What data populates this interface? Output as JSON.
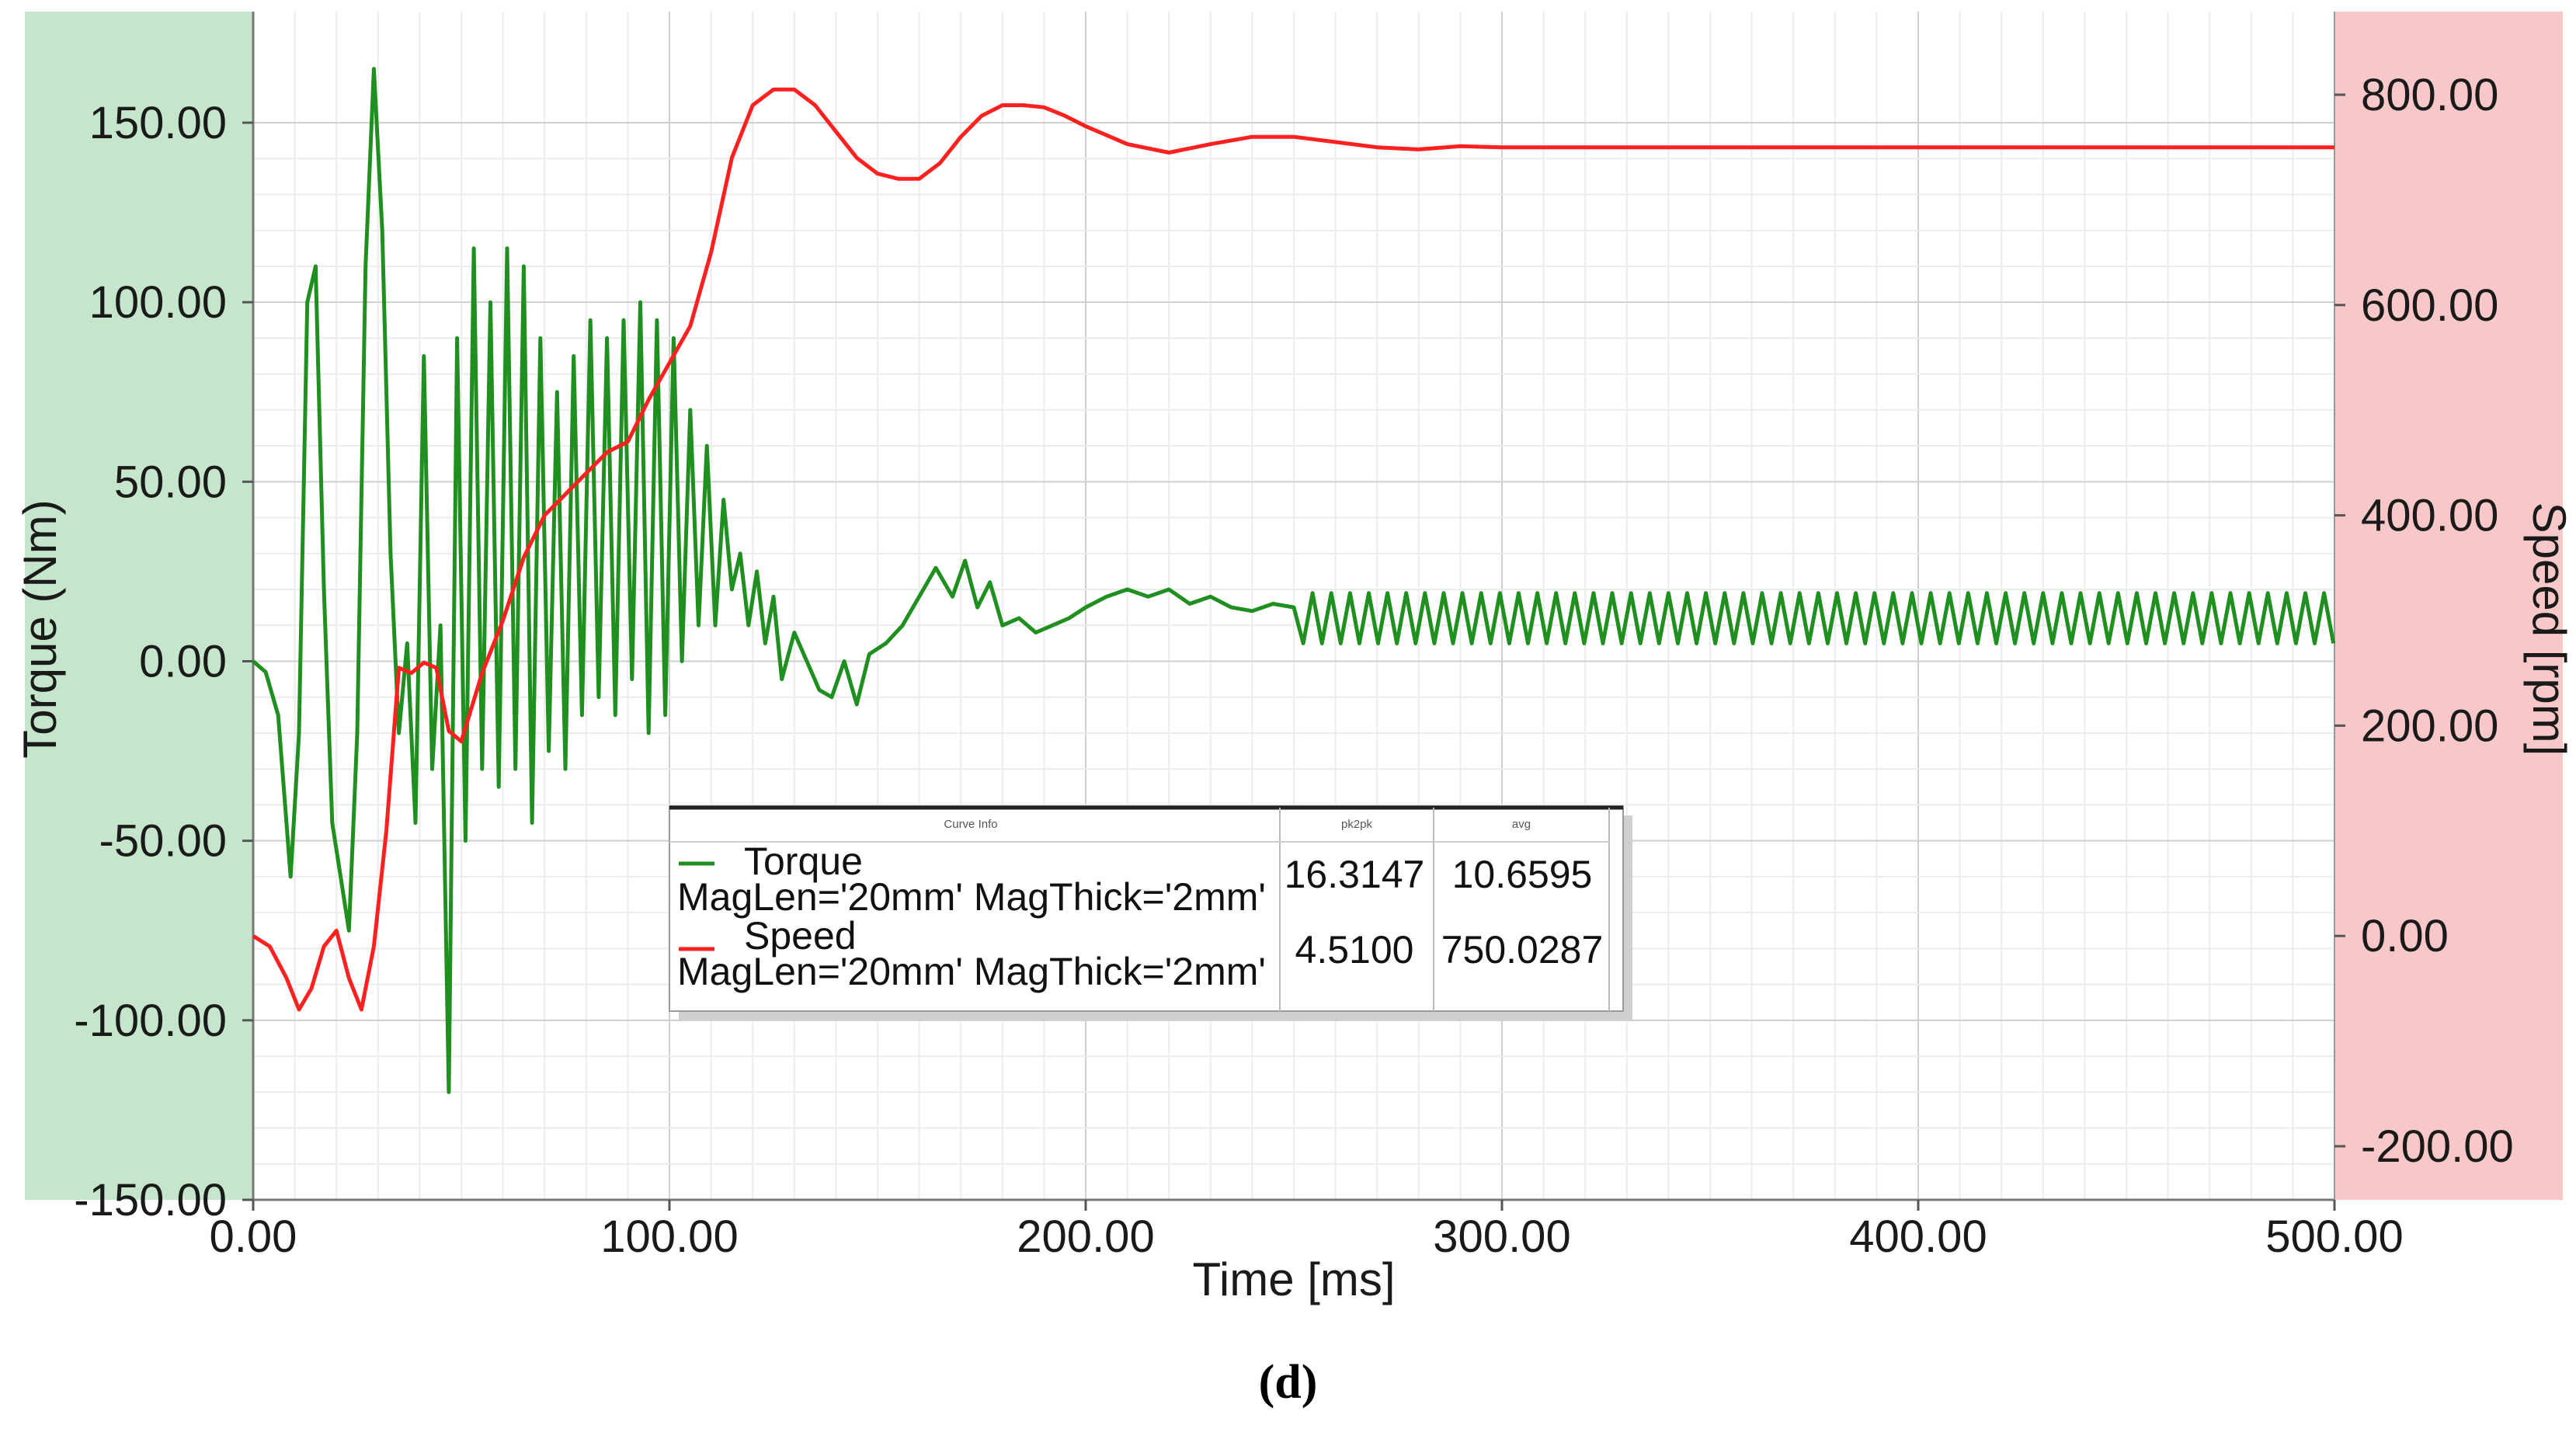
{
  "chart_data": {
    "type": "line",
    "xlabel": "Time [ms]",
    "ylabel_left": "Torque (Nm)",
    "ylabel_right": "Speed [rpm]",
    "xlim": [
      0,
      500
    ],
    "ylim_left": [
      -150,
      150
    ],
    "ylim_right": [
      -200,
      800
    ],
    "x_ticks": [
      "0.00",
      "100.00",
      "200.00",
      "300.00",
      "400.00",
      "500.00"
    ],
    "y_left_ticks": [
      "150.00",
      "100.00",
      "50.00",
      "0.00",
      "-50.00",
      "-100.00",
      "-150.00"
    ],
    "y_right_ticks": [
      "800.00",
      "600.00",
      "400.00",
      "200.00",
      "0.00",
      "-200.00"
    ],
    "y_left_tick_values": [
      150,
      100,
      50,
      0,
      -50,
      -100,
      -150
    ],
    "y_right_tick_values": [
      800,
      600,
      400,
      200,
      0,
      -200
    ],
    "x_tick_values": [
      0,
      100,
      200,
      300,
      400,
      500
    ],
    "grid": true,
    "legend_position": "center",
    "colors": {
      "torque": "#1f8f1f",
      "speed": "#ff2020",
      "left_band": "#c6e6cb",
      "right_band": "#f8c8c8"
    },
    "series": [
      {
        "name": "Torque",
        "axis": "left",
        "color": "#1f8f1f",
        "x": [
          0,
          3,
          6,
          9,
          11,
          13,
          15,
          17,
          19,
          21,
          23,
          25,
          27,
          29,
          31,
          33,
          35,
          37,
          39,
          41,
          43,
          45,
          47,
          49,
          51,
          53,
          55,
          57,
          59,
          61,
          63,
          65,
          67,
          69,
          71,
          73,
          75,
          77,
          79,
          81,
          83,
          85,
          87,
          89,
          91,
          93,
          95,
          97,
          99,
          101,
          103,
          105,
          107,
          109,
          111,
          113,
          115,
          117,
          119,
          121,
          123,
          125,
          127,
          130,
          133,
          136,
          139,
          142,
          145,
          148,
          152,
          156,
          160,
          164,
          168,
          171,
          174,
          177,
          180,
          184,
          188,
          192,
          196,
          200,
          205,
          210,
          215,
          220,
          225,
          230,
          235,
          240,
          245,
          250
        ],
        "y": [
          0,
          -3,
          -15,
          -60,
          -20,
          100,
          110,
          20,
          -45,
          -60,
          -75,
          -20,
          110,
          165,
          120,
          30,
          -20,
          5,
          -45,
          85,
          -30,
          10,
          -120,
          90,
          -50,
          115,
          -30,
          100,
          -35,
          115,
          -30,
          110,
          -45,
          90,
          -25,
          75,
          -30,
          85,
          -15,
          95,
          -10,
          90,
          -15,
          95,
          -5,
          100,
          -20,
          95,
          -15,
          90,
          0,
          70,
          10,
          60,
          10,
          45,
          20,
          30,
          10,
          25,
          5,
          18,
          -5,
          8,
          0,
          -8,
          -10,
          0,
          -12,
          2,
          5,
          10,
          18,
          26,
          18,
          28,
          15,
          22,
          10,
          12,
          8,
          10,
          12,
          15,
          18,
          20,
          18,
          20,
          16,
          18,
          15,
          14,
          16,
          15
        ],
        "steady_state": {
          "from": 250,
          "to": 500,
          "center": 12,
          "amplitude": 7,
          "period_ms": 4.5
        }
      },
      {
        "name": "Speed",
        "axis": "right",
        "color": "#ff2020",
        "x": [
          0,
          4,
          8,
          11,
          14,
          17,
          20,
          23,
          26,
          29,
          32,
          35,
          38,
          41,
          44,
          47,
          50,
          55,
          60,
          65,
          70,
          75,
          80,
          85,
          90,
          95,
          100,
          105,
          110,
          115,
          120,
          125,
          130,
          135,
          140,
          145,
          150,
          155,
          160,
          165,
          170,
          175,
          180,
          185,
          190,
          195,
          200,
          210,
          220,
          230,
          240,
          250,
          260,
          270,
          280,
          290,
          300,
          350,
          400,
          450,
          500
        ],
        "y": [
          0,
          -10,
          -40,
          -70,
          -50,
          -10,
          5,
          -40,
          -70,
          -10,
          100,
          255,
          250,
          260,
          255,
          195,
          185,
          250,
          300,
          360,
          400,
          420,
          440,
          460,
          470,
          510,
          545,
          580,
          650,
          740,
          790,
          805,
          805,
          790,
          765,
          740,
          725,
          720,
          720,
          735,
          760,
          780,
          790,
          790,
          788,
          780,
          770,
          753,
          745,
          753,
          760,
          760,
          755,
          750,
          748,
          751,
          750,
          750,
          750,
          750,
          750
        ]
      }
    ]
  },
  "legend": {
    "header_curve_info": "Curve Info",
    "header_pk2pk": "pk2pk",
    "header_avg": "avg",
    "rows": [
      {
        "name": "Torque",
        "params": "MagLen='20mm' MagThick='2mm'",
        "pk2pk": "16.3147",
        "avg": "10.6595",
        "color": "#1f8f1f"
      },
      {
        "name": "Speed",
        "params": "MagLen='20mm' MagThick='2mm'",
        "pk2pk": "4.5100",
        "avg": "750.0287",
        "color": "#ff2020"
      }
    ]
  },
  "panel_label": "(d)"
}
